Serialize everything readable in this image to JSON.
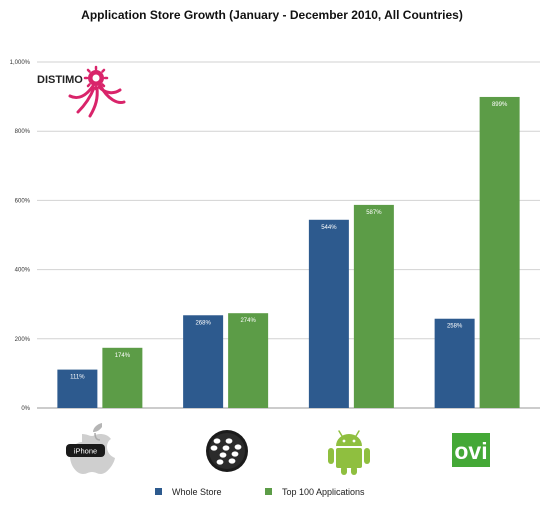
{
  "chart_data": {
    "type": "bar",
    "title": "Application Store Growth (January - December 2010, All Countries)",
    "xlabel": "",
    "ylabel": "",
    "ylim": [
      0,
      1000
    ],
    "yticks": [
      0,
      200,
      400,
      600,
      800,
      1000
    ],
    "ytick_labels": [
      "0%",
      "200%",
      "400%",
      "600%",
      "800%",
      "1,000%"
    ],
    "grid": true,
    "legend_position": "bottom",
    "categories": [
      "iPhone",
      "BlackBerry",
      "Android",
      "Ovi"
    ],
    "category_icons": [
      "apple-iphone-icon",
      "blackberry-icon",
      "android-icon",
      "ovi-icon"
    ],
    "icon_texts": {
      "iphone": "iPhone",
      "ovi": "ovi"
    },
    "series": [
      {
        "name": "Whole Store",
        "color": "#2d5a8e",
        "values": [
          111,
          268,
          544,
          258
        ],
        "labels": [
          "111%",
          "268%",
          "544%",
          "258%"
        ]
      },
      {
        "name": "Top 100 Applications",
        "color": "#5c9c47",
        "values": [
          174,
          274,
          587,
          899
        ],
        "labels": [
          "174%",
          "274%",
          "587%",
          "899%"
        ]
      }
    ]
  },
  "logo": {
    "text": "DISTIMO",
    "color": "#d9246a"
  }
}
